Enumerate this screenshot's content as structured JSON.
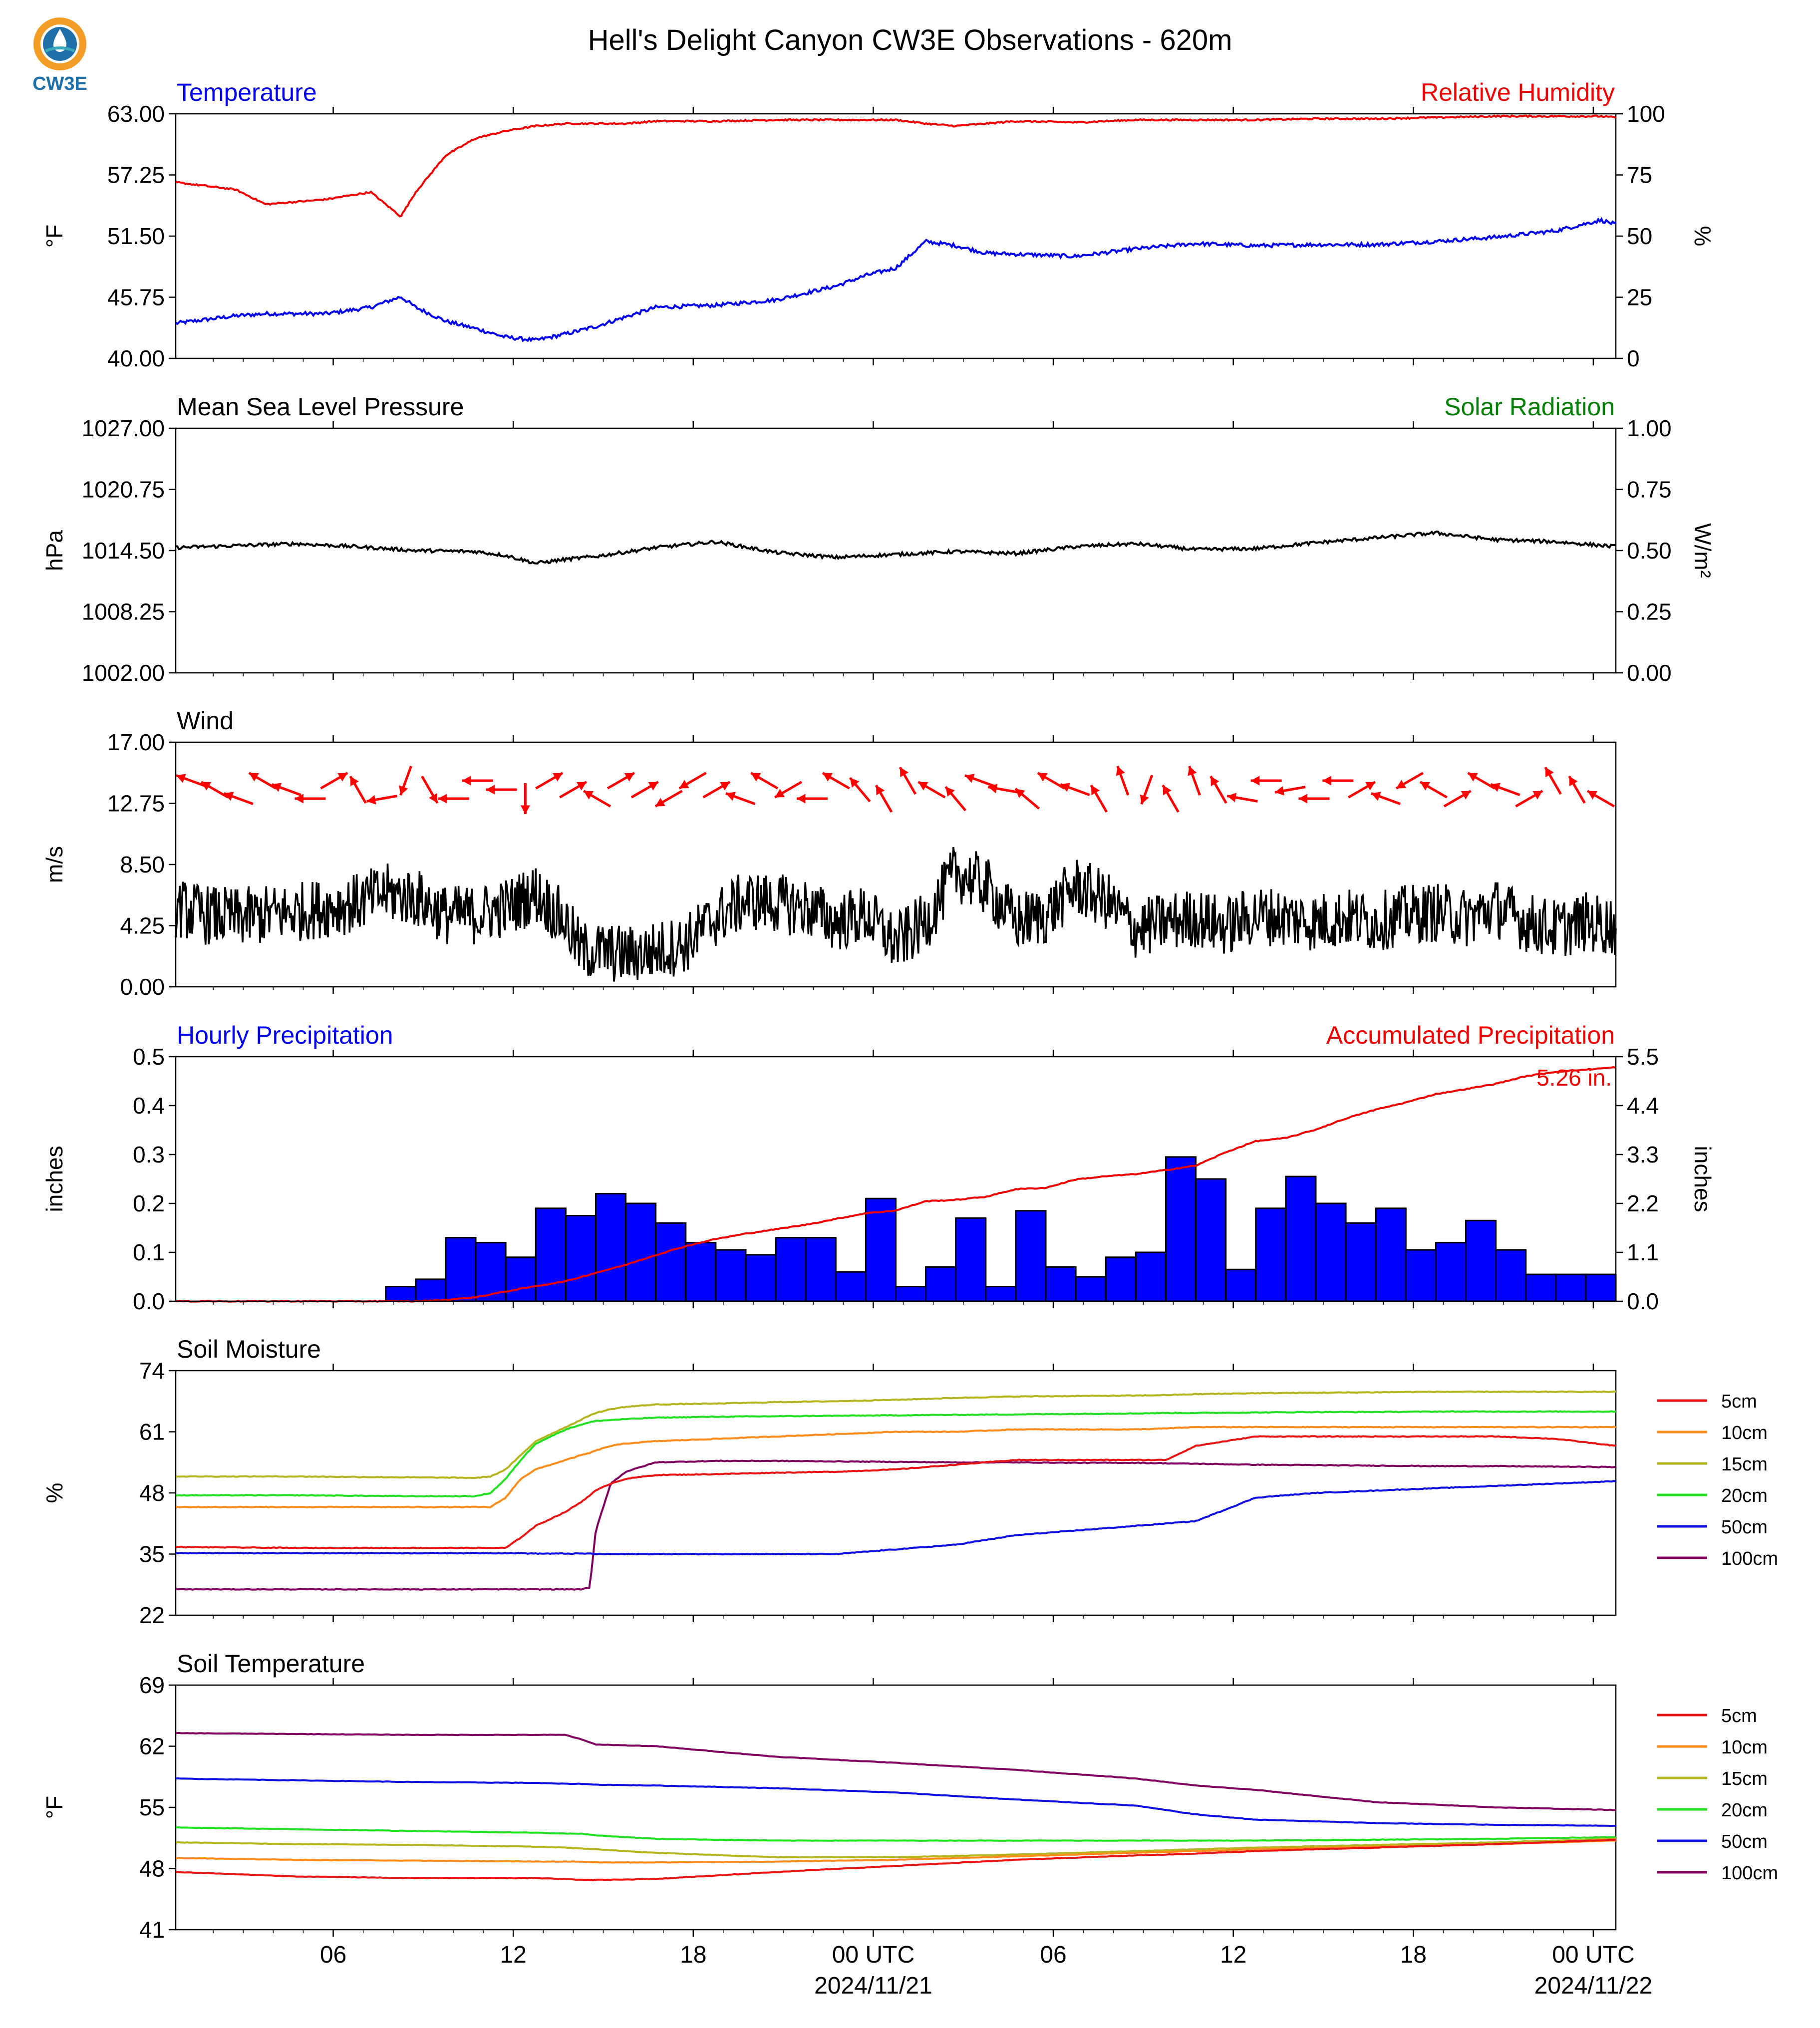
{
  "title": "Hell's Delight Canyon CW3E Observations - 620m",
  "logo": {
    "text": "CW3E",
    "colors": {
      "orange": "#f39c26",
      "blue": "#1f6fa8",
      "teal": "#3aa6b9"
    }
  },
  "time_axis": {
    "tick_labels": [
      "06",
      "12",
      "18",
      "00 UTC",
      "06",
      "12",
      "18",
      "00 UTC"
    ],
    "date_labels": [
      "2024/11/21",
      "2024/11/22"
    ]
  },
  "colors": {
    "temperature": "#0000ee",
    "humidity": "#ee0000",
    "pressure": "#000000",
    "solar": "#008000",
    "wind_arrow": "#ff0000",
    "precip_bar": "#0000ff",
    "accum": "#ee0000",
    "d5": "#e81515",
    "d10": "#ff8c1a",
    "d15": "#b5b520",
    "d20": "#22e022",
    "d50": "#1010e0",
    "d100": "#800060"
  },
  "chart_data": [
    {
      "type": "line",
      "panel": "temperature-humidity",
      "left_title": "Temperature",
      "right_title": "Relative Humidity",
      "ylabel_left": "°F",
      "ylabel_right": "%",
      "yticks_left": [
        "40.00",
        "45.75",
        "51.50",
        "57.25",
        "63.00"
      ],
      "yticks_right": [
        "0",
        "25",
        "50",
        "75",
        "100"
      ],
      "ylim_left": [
        40,
        63
      ],
      "ylim_right": [
        0,
        100
      ],
      "x_hours": [
        0,
        2,
        3,
        5,
        6.5,
        7.5,
        8,
        9,
        10,
        11,
        12,
        13,
        14,
        15,
        16,
        18,
        20,
        22,
        23,
        24,
        25,
        26,
        27,
        28,
        30,
        32,
        34,
        36,
        38,
        40,
        42,
        44,
        46,
        47.5,
        48
      ],
      "series": [
        {
          "name": "Temperature",
          "axis": "left",
          "values": [
            43.3,
            44.0,
            44.2,
            44.2,
            44.8,
            45.8,
            44.8,
            43.5,
            42.8,
            42.0,
            41.7,
            42.3,
            43.0,
            43.9,
            44.8,
            45.0,
            45.5,
            46.8,
            47.8,
            48.5,
            51.0,
            50.6,
            49.9,
            49.8,
            49.6,
            50.3,
            50.8,
            50.6,
            50.7,
            50.7,
            51.0,
            51.4,
            52.0,
            53.0,
            52.6
          ]
        },
        {
          "name": "Relative Humidity",
          "axis": "right",
          "values": [
            72,
            69,
            63,
            65,
            68,
            58,
            68,
            83,
            90,
            93,
            95,
            96,
            96,
            96,
            97,
            97,
            97.5,
            97.5,
            97.5,
            97.5,
            96,
            95,
            96,
            97,
            96.5,
            97.5,
            97.5,
            97.5,
            98,
            98,
            98.5,
            99,
            99,
            99,
            98.5
          ]
        }
      ]
    },
    {
      "type": "line",
      "panel": "pressure-solar",
      "left_title": "Mean Sea Level Pressure",
      "right_title": "Solar Radiation",
      "ylabel_left": "hPa",
      "ylabel_right": "W/m²",
      "yticks_left": [
        "1002.00",
        "1008.25",
        "1014.50",
        "1020.75",
        "1027.00"
      ],
      "yticks_right": [
        "0.00",
        "0.25",
        "0.50",
        "0.75",
        "1.00"
      ],
      "ylim_left": [
        1002,
        1027
      ],
      "ylim_right": [
        0,
        1
      ],
      "x_hours": [
        0,
        2,
        4,
        6,
        8,
        10,
        11,
        12,
        13,
        14,
        16,
        18,
        20,
        22,
        24,
        26,
        28,
        30,
        32,
        34,
        36,
        38,
        40,
        42,
        44,
        46,
        48
      ],
      "series": [
        {
          "name": "Mean Sea Level Pressure",
          "axis": "left",
          "values": [
            1014.8,
            1015.0,
            1015.2,
            1014.9,
            1014.5,
            1014.4,
            1014.0,
            1013.2,
            1013.6,
            1013.9,
            1014.8,
            1015.4,
            1014.3,
            1013.8,
            1014.1,
            1014.4,
            1014.2,
            1014.9,
            1015.2,
            1014.6,
            1014.7,
            1015.3,
            1015.8,
            1016.3,
            1015.6,
            1015.4,
            1014.9
          ]
        }
      ]
    },
    {
      "type": "line",
      "panel": "wind",
      "left_title": "Wind",
      "ylabel_left": "m/s",
      "yticks_left": [
        "0.00",
        "4.25",
        "8.50",
        "12.75",
        "17.00"
      ],
      "ylim_left": [
        0,
        17
      ],
      "x_hours": [
        0,
        1,
        2,
        3,
        4,
        5,
        6,
        7,
        8,
        9,
        10,
        11,
        12,
        13,
        13.5,
        14,
        15,
        16,
        17,
        18,
        19,
        20,
        21,
        22,
        23,
        24,
        25,
        26,
        27,
        28,
        29,
        30,
        31,
        32,
        33,
        34,
        35,
        36,
        37,
        38,
        39,
        40,
        41,
        42,
        43,
        44,
        45,
        46,
        47,
        48
      ],
      "series": [
        {
          "name": "Wind speed",
          "values": [
            5.5,
            5.0,
            4.8,
            5.0,
            5.2,
            5.5,
            5.8,
            6.5,
            6.2,
            5.0,
            5.0,
            5.5,
            6.5,
            4.5,
            2.5,
            2.5,
            2.2,
            2.5,
            3.0,
            4.8,
            6.0,
            5.8,
            5.5,
            4.5,
            5.0,
            3.0,
            4.5,
            8.0,
            7.0,
            4.5,
            5.0,
            7.0,
            6.0,
            4.0,
            4.5,
            4.8,
            4.2,
            5.0,
            4.8,
            4.5,
            4.8,
            4.5,
            5.0,
            5.2,
            4.8,
            5.5,
            4.5,
            4.0,
            4.5,
            4.2
          ]
        }
      ],
      "wind_dirs_deg": [
        290,
        300,
        290,
        300,
        290,
        270,
        60,
        330,
        260,
        200,
        150,
        270,
        270,
        270,
        180,
        60,
        60,
        300,
        60,
        60,
        240,
        240,
        60,
        290,
        300,
        240,
        270,
        300,
        320,
        330,
        330,
        300,
        320,
        290,
        280,
        310,
        300,
        290,
        330,
        340,
        200,
        330,
        340,
        330,
        280,
        270,
        260,
        270,
        270,
        60,
        290,
        240,
        300,
        60,
        300,
        290,
        60,
        330,
        330,
        300
      ]
    },
    {
      "type": "bar",
      "panel": "precipitation",
      "left_title": "Hourly Precipitation",
      "right_title": "Accumulated Precipitation",
      "annotation": "5.26 in.",
      "ylabel_left": "inches",
      "ylabel_right": "inches",
      "yticks_left": [
        "0.0",
        "0.1",
        "0.2",
        "0.3",
        "0.4",
        "0.5"
      ],
      "yticks_right": [
        "0.0",
        "1.1",
        "2.2",
        "3.3",
        "4.4",
        "5.5"
      ],
      "ylim_left": [
        0,
        0.5
      ],
      "ylim_right": [
        0,
        5.5
      ],
      "hourly_values": [
        0,
        0,
        0,
        0,
        0,
        0,
        0,
        0.03,
        0.045,
        0.13,
        0.12,
        0.09,
        0.19,
        0.175,
        0.22,
        0.2,
        0.16,
        0.12,
        0.105,
        0.095,
        0.13,
        0.13,
        0.06,
        0.21,
        0.03,
        0.07,
        0.17,
        0.03,
        0.185,
        0.07,
        0.05,
        0.09,
        0.1,
        0.295,
        0.25,
        0.065,
        0.19,
        0.255,
        0.2,
        0.16,
        0.19,
        0.105,
        0.12,
        0.165,
        0.105,
        0.055,
        0.055,
        0.055
      ],
      "accum_x_hours": [
        0,
        8,
        9,
        10,
        11,
        12,
        13,
        14,
        15,
        16,
        17,
        18,
        19,
        20,
        21,
        22,
        23,
        24,
        25,
        26,
        27,
        28,
        29,
        30,
        31,
        32,
        33,
        34,
        35,
        36,
        37,
        38,
        39,
        40,
        41,
        42,
        43,
        44,
        45,
        46,
        47,
        48
      ],
      "accum_values": [
        0,
        0,
        0.03,
        0.09,
        0.22,
        0.34,
        0.45,
        0.64,
        0.82,
        1.04,
        1.24,
        1.4,
        1.52,
        1.62,
        1.72,
        1.85,
        1.98,
        2.04,
        2.25,
        2.28,
        2.35,
        2.52,
        2.55,
        2.74,
        2.81,
        2.86,
        2.95,
        3.05,
        3.35,
        3.6,
        3.67,
        3.86,
        4.11,
        4.31,
        4.47,
        4.66,
        4.77,
        4.89,
        5.06,
        5.16,
        5.21,
        5.26
      ]
    },
    {
      "type": "line",
      "panel": "soil-moisture",
      "left_title": "Soil Moisture",
      "ylabel_left": "%",
      "yticks_left": [
        "22",
        "35",
        "48",
        "61",
        "74"
      ],
      "ylim_left": [
        22,
        74
      ],
      "x_hours": [
        0,
        4,
        8,
        10,
        10.5,
        11,
        11.5,
        12,
        13,
        13.5,
        13.8,
        14,
        14.5,
        15,
        16,
        18,
        20,
        22,
        24,
        26,
        28,
        30,
        32,
        33,
        34,
        36,
        38,
        40,
        42,
        44,
        46,
        48
      ],
      "legend": [
        "5cm",
        "10cm",
        "15cm",
        "20cm",
        "50cm",
        "100cm"
      ],
      "series": [
        {
          "name": "5cm",
          "values": [
            36.5,
            36.3,
            36.3,
            36.3,
            36.3,
            36.3,
            38.5,
            41,
            44,
            46,
            47.5,
            48.5,
            50,
            51,
            51.8,
            52,
            52.3,
            52.5,
            53,
            54,
            55,
            55,
            55,
            55,
            58,
            60,
            60,
            60,
            60,
            60,
            59.5,
            58
          ]
        },
        {
          "name": "10cm",
          "values": [
            45,
            45,
            45,
            45,
            45,
            47,
            51,
            53,
            55,
            56,
            56.5,
            57,
            58,
            58.5,
            59,
            59.5,
            60,
            60.5,
            61,
            61,
            61.5,
            61.5,
            61.5,
            61.7,
            62,
            62,
            62,
            62,
            62,
            62,
            62,
            62
          ]
        },
        {
          "name": "15cm",
          "values": [
            51.5,
            51.5,
            51.3,
            51.2,
            51.5,
            53,
            56,
            59,
            62,
            63.5,
            64.5,
            65,
            65.8,
            66.3,
            66.8,
            67,
            67.3,
            67.5,
            67.8,
            68.2,
            68.5,
            68.6,
            68.7,
            68.8,
            69,
            69.2,
            69.3,
            69.4,
            69.5,
            69.5,
            69.5,
            69.5
          ]
        },
        {
          "name": "20cm",
          "values": [
            47.5,
            47.5,
            47.3,
            47.3,
            48,
            51,
            55,
            58.5,
            61.5,
            62.5,
            63,
            63.3,
            63.5,
            63.7,
            64,
            64.2,
            64.3,
            64.4,
            64.5,
            64.6,
            64.7,
            64.8,
            64.9,
            65,
            65,
            65.1,
            65.2,
            65.2,
            65.3,
            65.3,
            65.3,
            65.3
          ]
        },
        {
          "name": "50cm",
          "values": [
            35.2,
            35.2,
            35.2,
            35.2,
            35.2,
            35.2,
            35.2,
            35.1,
            35.1,
            35.1,
            35.1,
            35,
            35,
            35,
            35,
            35,
            35,
            35,
            36,
            37,
            39,
            40,
            41,
            41.5,
            42,
            47,
            48,
            48.5,
            49,
            49.5,
            50,
            50.5
          ]
        },
        {
          "name": "100cm",
          "values": [
            27.5,
            27.5,
            27.5,
            27.5,
            27.5,
            27.5,
            27.5,
            27.5,
            27.5,
            27.5,
            27.8,
            40,
            50,
            52.5,
            54.5,
            54.8,
            54.8,
            54.7,
            54.6,
            54.5,
            54.5,
            54.4,
            54.4,
            54.3,
            54.2,
            54,
            53.9,
            53.8,
            53.7,
            53.7,
            53.6,
            53.5
          ]
        }
      ]
    },
    {
      "type": "line",
      "panel": "soil-temperature",
      "left_title": "Soil Temperature",
      "ylabel_left": "°F",
      "yticks_left": [
        "41",
        "48",
        "55",
        "62",
        "69"
      ],
      "ylim_left": [
        41,
        69
      ],
      "x_hours": [
        0,
        4,
        8,
        12,
        13,
        13.5,
        14,
        16,
        20,
        24,
        28,
        32,
        34,
        36,
        40,
        44,
        48
      ],
      "legend": [
        "5cm",
        "10cm",
        "15cm",
        "20cm",
        "50cm",
        "100cm"
      ],
      "series": [
        {
          "name": "5cm",
          "values": [
            47.6,
            47.1,
            46.9,
            46.9,
            46.8,
            46.7,
            46.7,
            46.8,
            47.6,
            48.3,
            49,
            49.5,
            49.7,
            50,
            50.4,
            50.8,
            51.3
          ]
        },
        {
          "name": "10cm",
          "values": [
            49.2,
            49,
            48.9,
            48.8,
            48.8,
            48.8,
            48.7,
            48.7,
            48.8,
            49,
            49.4,
            49.8,
            50,
            50.2,
            50.5,
            50.8,
            51.2
          ]
        },
        {
          "name": "15cm",
          "values": [
            51,
            50.8,
            50.7,
            50.5,
            50.4,
            50.3,
            50.2,
            49.8,
            49.3,
            49.3,
            49.6,
            50,
            50.2,
            50.4,
            50.7,
            51,
            51.4
          ]
        },
        {
          "name": "20cm",
          "values": [
            52.7,
            52.5,
            52.3,
            52.1,
            52,
            52,
            51.8,
            51.4,
            51.2,
            51.2,
            51.2,
            51.2,
            51.2,
            51.2,
            51.3,
            51.4,
            51.6
          ]
        },
        {
          "name": "50cm",
          "values": [
            58.3,
            58.1,
            57.9,
            57.8,
            57.7,
            57.7,
            57.6,
            57.5,
            57.2,
            56.7,
            55.9,
            55.2,
            54.2,
            53.6,
            53.2,
            53,
            52.9
          ]
        },
        {
          "name": "100cm",
          "values": [
            63.5,
            63.4,
            63.3,
            63.3,
            63.3,
            62.8,
            62.2,
            62,
            60.8,
            60.1,
            59.3,
            58.3,
            57.5,
            57,
            55.6,
            55,
            54.7
          ]
        }
      ]
    }
  ]
}
